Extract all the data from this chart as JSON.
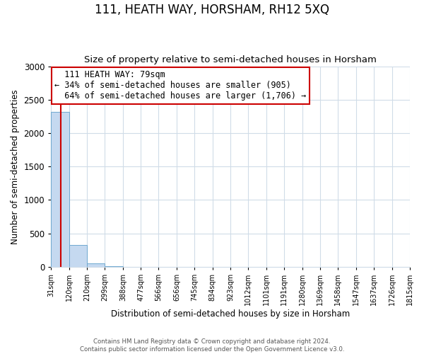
{
  "title": "111, HEATH WAY, HORSHAM, RH12 5XQ",
  "subtitle": "Size of property relative to semi-detached houses in Horsham",
  "xlabel": "Distribution of semi-detached houses by size in Horsham",
  "ylabel": "Number of semi-detached properties",
  "bin_edges": [
    31,
    120,
    210,
    299,
    388,
    477,
    566,
    656,
    745,
    834,
    923,
    1012,
    1101,
    1191,
    1280,
    1369,
    1458,
    1547,
    1637,
    1726,
    1815
  ],
  "bin_labels": [
    "31sqm",
    "120sqm",
    "210sqm",
    "299sqm",
    "388sqm",
    "477sqm",
    "566sqm",
    "656sqm",
    "745sqm",
    "834sqm",
    "923sqm",
    "1012sqm",
    "1101sqm",
    "1191sqm",
    "1280sqm",
    "1369sqm",
    "1458sqm",
    "1547sqm",
    "1637sqm",
    "1726sqm",
    "1815sqm"
  ],
  "bar_heights": [
    2320,
    330,
    50,
    5,
    2,
    1,
    1,
    1,
    0,
    0,
    0,
    0,
    0,
    0,
    0,
    0,
    0,
    0,
    0,
    0
  ],
  "bar_color": "#c5d9f0",
  "bar_edgecolor": "#6fa8d0",
  "property_size": 79,
  "property_label": "111 HEATH WAY: 79sqm",
  "pct_smaller": 34,
  "pct_larger": 64,
  "n_smaller": 905,
  "n_larger": 1706,
  "vline_color": "#cc0000",
  "annotation_box_color": "#cc0000",
  "ylim": [
    0,
    3000
  ],
  "yticks": [
    0,
    500,
    1000,
    1500,
    2000,
    2500,
    3000
  ],
  "grid_color": "#d0dce8",
  "background_color": "#ffffff",
  "footer1": "Contains HM Land Registry data © Crown copyright and database right 2024.",
  "footer2": "Contains public sector information licensed under the Open Government Licence v3.0.",
  "title_fontsize": 12,
  "subtitle_fontsize": 9.5,
  "ann_fontsize": 8.5
}
